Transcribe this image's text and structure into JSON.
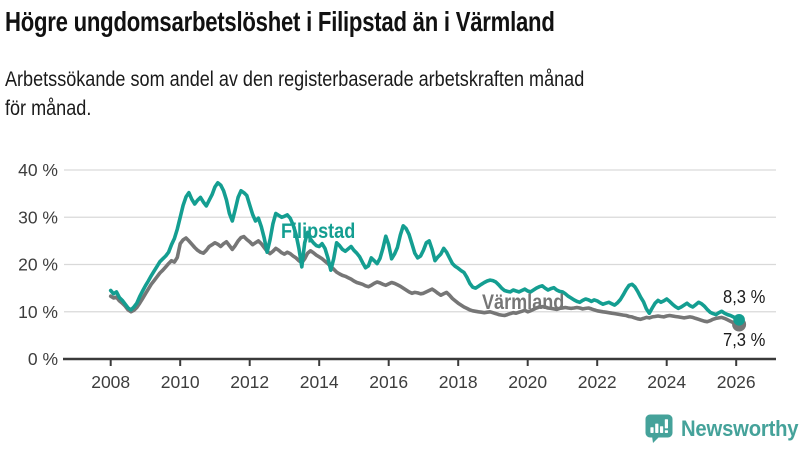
{
  "header": {
    "title": "Högre ungdomsarbetslöshet i Filipstad än i Värmland",
    "subtitle": "Arbetssökande som andel av den registerbaserade arbetskraften månad\nför månad."
  },
  "colors": {
    "filipstad": "#149E91",
    "varmland": "#767676",
    "grid": "#d9d9d9",
    "axis": "#3a3a3a",
    "tick_text": "#3d3d3d",
    "annotation_text": "#1a1a1a",
    "logo": "#45A29A"
  },
  "chart_data": {
    "type": "line",
    "title": "Högre ungdomsarbetslöshet i Filipstad än i Värmland",
    "subtitle": "Arbetssökande som andel av den registerbaserade arbetskraften månad för månad.",
    "unit": "%",
    "x_start": "2008-01",
    "x_end": "2026-02",
    "x_step_months": 1,
    "x_ticks": [
      2008,
      2010,
      2012,
      2014,
      2016,
      2018,
      2020,
      2022,
      2024,
      2026
    ],
    "y_ticks": [
      0,
      10,
      20,
      30,
      40
    ],
    "ylim": [
      0,
      42
    ],
    "grid": "horizontal",
    "legend_position": "inline-labels",
    "series": [
      {
        "name": "Filipstad",
        "color": "#149E91",
        "end_label": "8,3 %",
        "end_value": 8.3,
        "values": [
          14.5,
          13.8,
          14.2,
          13.0,
          12.4,
          11.6,
          10.8,
          10.4,
          11.0,
          11.8,
          13.2,
          14.4,
          15.5,
          16.5,
          17.6,
          18.6,
          19.6,
          20.6,
          21.2,
          21.8,
          22.6,
          24.2,
          25.5,
          27.5,
          30.0,
          32.5,
          34.3,
          35.2,
          33.8,
          32.8,
          33.6,
          34.2,
          33.2,
          32.4,
          33.6,
          34.8,
          36.4,
          37.3,
          36.8,
          35.6,
          33.6,
          30.8,
          29.2,
          31.6,
          34.2,
          35.6,
          35.2,
          34.6,
          32.6,
          30.6,
          29.2,
          29.8,
          28.0,
          25.6,
          22.6,
          25.2,
          28.6,
          30.8,
          30.4,
          30.0,
          30.2,
          30.5,
          29.8,
          28.4,
          26.4,
          23.4,
          19.5,
          24.6,
          26.8,
          25.4,
          24.6,
          24.0,
          23.8,
          24.4,
          23.4,
          21.4,
          18.8,
          21.2,
          24.6,
          24.0,
          23.2,
          22.8,
          23.3,
          23.8,
          23.0,
          22.4,
          21.6,
          20.4,
          19.3,
          19.7,
          21.4,
          20.8,
          20.2,
          21.3,
          23.4,
          26.0,
          24.2,
          21.2,
          22.2,
          23.6,
          26.2,
          28.2,
          27.6,
          26.4,
          24.4,
          22.4,
          21.4,
          21.8,
          23.0,
          24.6,
          25.0,
          23.2,
          20.8,
          21.6,
          22.2,
          23.4,
          22.6,
          21.4,
          20.2,
          19.6,
          19.2,
          18.7,
          18.3,
          17.3,
          16.0,
          15.2,
          15.0,
          15.4,
          15.8,
          16.2,
          16.5,
          16.7,
          16.6,
          16.3,
          15.7,
          15.0,
          14.5,
          14.3,
          14.2,
          14.6,
          14.4,
          14.2,
          14.5,
          14.8,
          14.4,
          14.2,
          14.6,
          15.0,
          15.3,
          15.5,
          15.0,
          14.6,
          14.9,
          15.1,
          14.6,
          14.3,
          14.2,
          13.8,
          13.3,
          12.9,
          12.5,
          12.2,
          12.0,
          12.4,
          12.7,
          12.5,
          12.2,
          12.5,
          12.3,
          11.9,
          11.6,
          11.8,
          12.0,
          11.7,
          11.4,
          11.9,
          12.6,
          13.6,
          14.7,
          15.6,
          15.8,
          15.3,
          14.3,
          13.1,
          12.1,
          10.6,
          9.7,
          10.8,
          11.8,
          12.4,
          12.0,
          12.3,
          12.7,
          12.2,
          11.6,
          11.1,
          10.7,
          11.0,
          11.4,
          11.8,
          11.3,
          11.0,
          11.5,
          12.0,
          11.7,
          11.2,
          10.5,
          9.9,
          9.6,
          9.4,
          9.8,
          10.1,
          9.7,
          9.4,
          9.2,
          8.9,
          8.6,
          8.3
        ]
      },
      {
        "name": "Värmland",
        "color": "#767676",
        "end_label": "7,3 %",
        "end_value": 7.3,
        "values": [
          13.3,
          12.9,
          13.1,
          12.3,
          11.8,
          11.2,
          10.4,
          10.0,
          10.3,
          10.9,
          11.8,
          12.8,
          13.8,
          14.8,
          15.8,
          16.6,
          17.4,
          18.2,
          18.8,
          19.5,
          20.2,
          20.8,
          20.5,
          21.5,
          24.4,
          25.2,
          25.6,
          25.0,
          24.3,
          23.6,
          23.0,
          22.6,
          22.4,
          23.0,
          23.8,
          24.2,
          24.6,
          24.3,
          23.8,
          24.4,
          24.8,
          24.0,
          23.2,
          24.0,
          25.0,
          25.7,
          25.9,
          25.3,
          24.8,
          24.2,
          24.6,
          25.0,
          24.4,
          23.6,
          22.8,
          22.3,
          22.8,
          23.4,
          23.0,
          22.5,
          22.2,
          22.6,
          22.3,
          21.8,
          21.4,
          20.8,
          20.4,
          21.2,
          22.4,
          22.9,
          22.5,
          22.0,
          21.6,
          21.2,
          20.7,
          20.2,
          19.6,
          19.0,
          18.4,
          18.0,
          17.7,
          17.5,
          17.2,
          16.9,
          16.5,
          16.2,
          16.0,
          15.8,
          15.5,
          15.3,
          15.6,
          16.0,
          16.3,
          16.1,
          15.8,
          15.6,
          15.9,
          16.2,
          16.0,
          15.7,
          15.4,
          15.0,
          14.6,
          14.2,
          13.9,
          14.1,
          14.0,
          13.8,
          13.9,
          14.2,
          14.5,
          14.8,
          14.4,
          13.9,
          13.5,
          13.8,
          14.1,
          13.5,
          12.8,
          12.3,
          11.8,
          11.4,
          11.0,
          10.7,
          10.4,
          10.2,
          10.1,
          10.0,
          9.9,
          9.8,
          9.9,
          10.0,
          9.8,
          9.6,
          9.4,
          9.3,
          9.2,
          9.4,
          9.6,
          9.8,
          9.7,
          9.9,
          10.1,
          10.3,
          10.0,
          10.2,
          10.5,
          10.8,
          11.0,
          11.1,
          11.0,
          10.8,
          10.7,
          10.6,
          10.5,
          10.7,
          10.8,
          10.9,
          10.8,
          10.7,
          10.8,
          10.9,
          10.8,
          10.6,
          10.7,
          10.8,
          10.6,
          10.4,
          10.2,
          10.1,
          10.0,
          9.9,
          9.8,
          9.7,
          9.6,
          9.5,
          9.4,
          9.3,
          9.2,
          9.0,
          8.9,
          8.7,
          8.5,
          8.4,
          8.6,
          8.8,
          8.7,
          8.9,
          9.0,
          9.1,
          9.0,
          8.9,
          9.1,
          9.2,
          9.1,
          9.0,
          8.9,
          8.8,
          8.7,
          8.8,
          8.9,
          8.8,
          8.6,
          8.4,
          8.2,
          8.0,
          7.9,
          8.1,
          8.4,
          8.6,
          8.7,
          8.8,
          8.6,
          8.3,
          8.0,
          7.7,
          7.5,
          7.3
        ]
      }
    ]
  },
  "footer": {
    "brand_label": "Newsworthy"
  }
}
